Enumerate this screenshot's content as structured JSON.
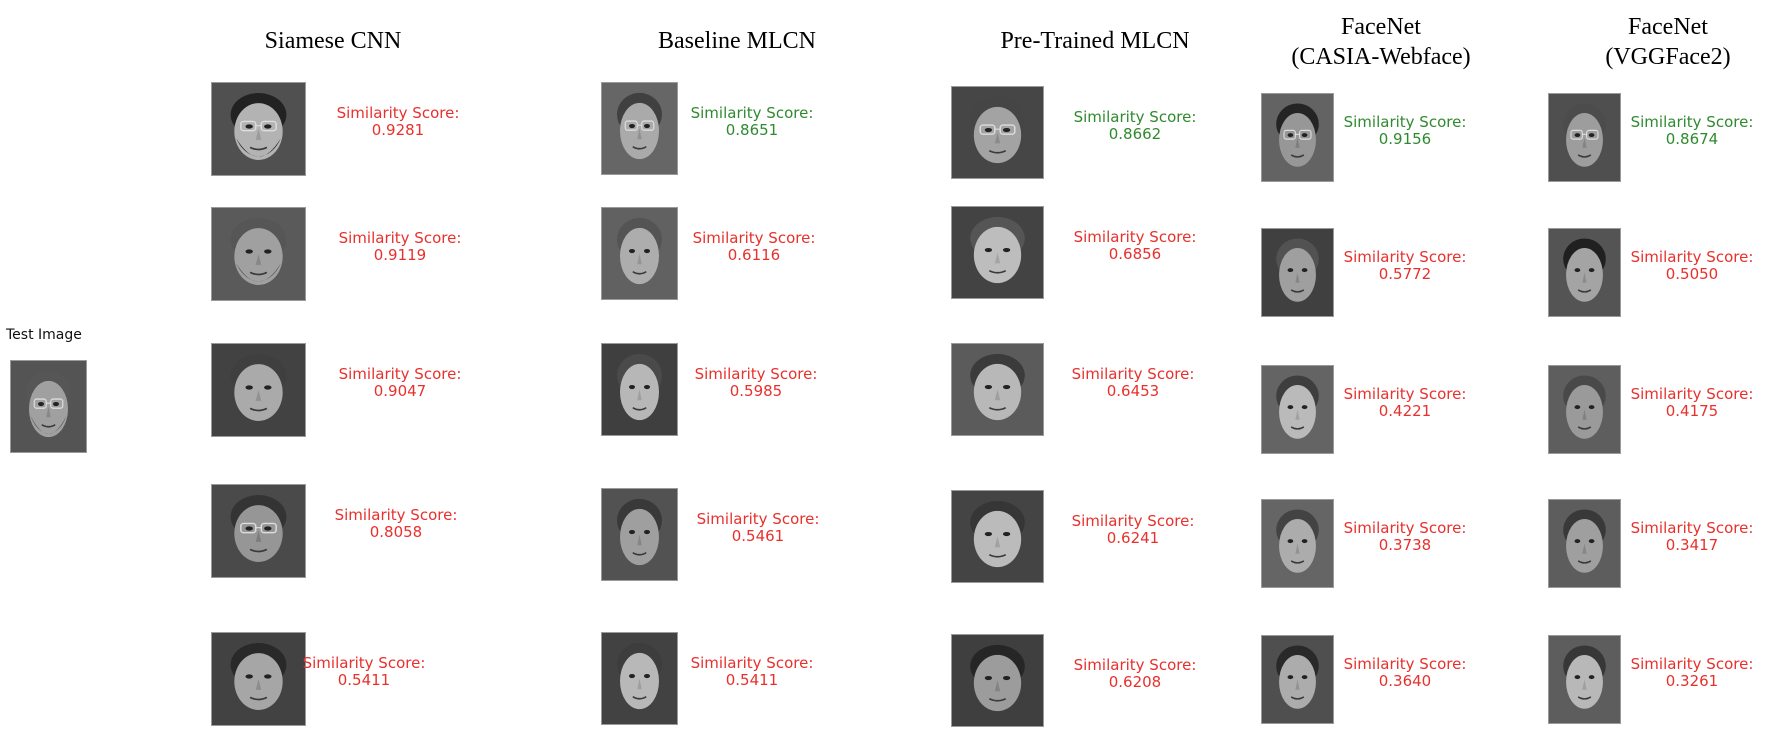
{
  "test_image_label": "Test Image",
  "score_label": "Similarity Score:",
  "colors": {
    "match": "#2f8a2f",
    "non_match": "#e8302c"
  },
  "methods": [
    {
      "title_lines": [
        "Siamese CNN"
      ],
      "results": [
        {
          "score": "0.9281",
          "match": false
        },
        {
          "score": "0.9119",
          "match": false
        },
        {
          "score": "0.9047",
          "match": false
        },
        {
          "score": "0.8058",
          "match": false
        },
        {
          "score": "0.5411",
          "match": false
        }
      ]
    },
    {
      "title_lines": [
        "Baseline MLCN"
      ],
      "results": [
        {
          "score": "0.8651",
          "match": true
        },
        {
          "score": "0.6116",
          "match": false
        },
        {
          "score": "0.5985",
          "match": false
        },
        {
          "score": "0.5461",
          "match": false
        },
        {
          "score": "0.5411",
          "match": false
        }
      ]
    },
    {
      "title_lines": [
        "Pre-Trained MLCN"
      ],
      "results": [
        {
          "score": "0.8662",
          "match": true
        },
        {
          "score": "0.6856",
          "match": false
        },
        {
          "score": "0.6453",
          "match": false
        },
        {
          "score": "0.6241",
          "match": false
        },
        {
          "score": "0.6208",
          "match": false
        }
      ]
    },
    {
      "title_lines": [
        "FaceNet",
        "(CASIA-Webface)"
      ],
      "results": [
        {
          "score": "0.9156",
          "match": true
        },
        {
          "score": "0.5772",
          "match": false
        },
        {
          "score": "0.4221",
          "match": false
        },
        {
          "score": "0.3738",
          "match": false
        },
        {
          "score": "0.3640",
          "match": false
        }
      ]
    },
    {
      "title_lines": [
        "FaceNet",
        "(VGGFace2)"
      ],
      "results": [
        {
          "score": "0.8674",
          "match": true
        },
        {
          "score": "0.5050",
          "match": false
        },
        {
          "score": "0.4175",
          "match": false
        },
        {
          "score": "0.3417",
          "match": false
        },
        {
          "score": "0.3261",
          "match": false
        }
      ]
    }
  ]
}
